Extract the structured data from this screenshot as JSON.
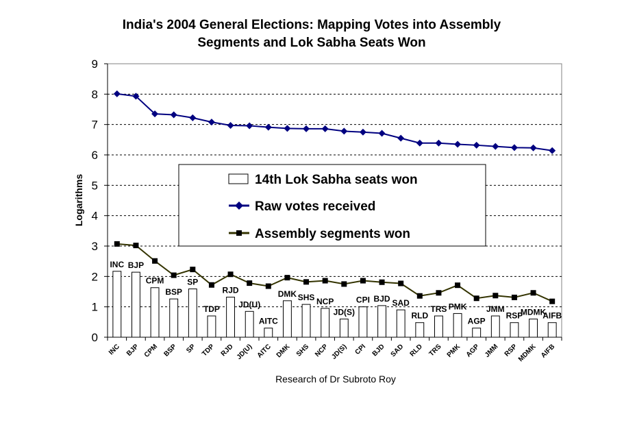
{
  "chart_data": {
    "type": "bar",
    "title_lines": [
      "India's 2004 General Elections: Mapping Votes into Assembly",
      "Segments and Lok Sabha Seats Won"
    ],
    "xlabel": "Research of Dr Subroto Roy",
    "ylabel": "Logarithms",
    "ylim": [
      0,
      9
    ],
    "yticks": [
      "0",
      "1",
      "2",
      "3",
      "4",
      "5",
      "6",
      "7",
      "8",
      "9"
    ],
    "grid": "horizontal dashed",
    "legend_position": "center",
    "categories": [
      "INC",
      "BJP",
      "CPM",
      "BSP",
      "SP",
      "TDP",
      "RJD",
      "JD(U)",
      "AITC",
      "DMK",
      "SHS",
      "NCP",
      "JD(S)",
      "CPI",
      "BJD",
      "SAD",
      "RLD",
      "TRS",
      "PMK",
      "AGP",
      "JMM",
      "RSP",
      "MDMK",
      "AIFB"
    ],
    "series": [
      {
        "name": "14th Lok Sabha seats won",
        "type": "bar",
        "values": [
          2.17,
          2.14,
          1.63,
          1.26,
          1.59,
          0.7,
          1.32,
          0.85,
          0.3,
          1.2,
          1.08,
          0.95,
          0.6,
          1.0,
          1.04,
          0.9,
          0.48,
          0.7,
          0.78,
          0.3,
          0.7,
          0.48,
          0.6,
          0.48
        ],
        "labels": [
          "INC",
          "BJP",
          "CPM",
          "BSP",
          "SP",
          "TDP",
          "RJD",
          "JD(U)",
          "AITC",
          "DMK",
          "SHS",
          "NCP",
          "JD(S)",
          "CPI",
          "BJD",
          "SAD",
          "RLD",
          "TRS",
          "PMK",
          "AGP",
          "JMM",
          "RSP",
          "MDMK",
          "AIFB"
        ]
      },
      {
        "name": "Raw votes received",
        "type": "line",
        "color": "#000080",
        "values": [
          8.01,
          7.93,
          7.35,
          7.32,
          7.22,
          7.08,
          6.97,
          6.96,
          6.91,
          6.87,
          6.86,
          6.86,
          6.78,
          6.75,
          6.71,
          6.55,
          6.39,
          6.39,
          6.35,
          6.32,
          6.28,
          6.24,
          6.23,
          6.14
        ]
      },
      {
        "name": "Assembly segments won",
        "type": "line",
        "color": "#333300",
        "values": [
          3.07,
          3.02,
          2.51,
          2.04,
          2.23,
          1.72,
          2.07,
          1.78,
          1.68,
          1.96,
          1.82,
          1.86,
          1.75,
          1.86,
          1.81,
          1.77,
          1.36,
          1.46,
          1.71,
          1.28,
          1.37,
          1.31,
          1.46,
          1.18
        ]
      }
    ]
  }
}
